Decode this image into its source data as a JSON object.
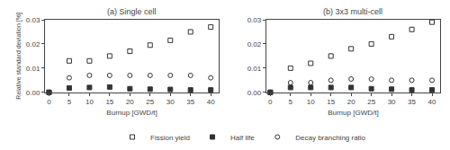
{
  "chart_data": [
    {
      "type": "scatter",
      "title": "(a) Single cell",
      "x": [
        0,
        5,
        10,
        15,
        20,
        25,
        30,
        35,
        40
      ],
      "series": [
        {
          "name": "Fission yield",
          "color": "#333333",
          "marker": "square-open",
          "values": [
            0.0,
            0.013,
            0.013,
            0.015,
            0.017,
            0.0195,
            0.0215,
            0.025,
            0.027
          ]
        },
        {
          "name": "Half life",
          "color": "#333333",
          "marker": "square",
          "values": [
            0.0,
            0.0018,
            0.002,
            0.0022,
            0.0015,
            0.0013,
            0.0012,
            0.001,
            0.001
          ]
        },
        {
          "name": "Decay branching ratio",
          "color": "#333333",
          "marker": "circle-open",
          "values": [
            0.0,
            0.006,
            0.007,
            0.007,
            0.007,
            0.007,
            0.007,
            0.007,
            0.006
          ]
        }
      ],
      "xlabel": "Burnup [GWD/t]",
      "ylabel": "Relative standard deviation [%]",
      "xlim": [
        -1,
        42
      ],
      "ylim": [
        0.0,
        0.03
      ],
      "xticks": [
        0,
        5,
        10,
        15,
        20,
        25,
        30,
        35,
        40
      ],
      "yticks": [
        {
          "value": 0.0,
          "label": "0.00"
        },
        {
          "value": 0.01,
          "label": "0.01"
        },
        {
          "value": 0.02,
          "label": "0.02"
        },
        {
          "value": 0.03,
          "label": "0.03"
        }
      ],
      "grid": false,
      "legend": "bottom"
    },
    {
      "type": "scatter",
      "title": "(b) 3x3 multi-cell",
      "x": [
        0,
        5,
        10,
        15,
        20,
        25,
        30,
        35,
        40
      ],
      "series": [
        {
          "name": "Fission yield",
          "color": "#333333",
          "marker": "square-open",
          "values": [
            0.0,
            0.01,
            0.012,
            0.015,
            0.018,
            0.02,
            0.023,
            0.026,
            0.029
          ]
        },
        {
          "name": "Half life",
          "color": "#333333",
          "marker": "square",
          "values": [
            0.0,
            0.002,
            0.002,
            0.002,
            0.002,
            0.0015,
            0.0013,
            0.001,
            0.001
          ]
        },
        {
          "name": "Decay branching ratio",
          "color": "#333333",
          "marker": "circle-open",
          "values": [
            0.0,
            0.004,
            0.004,
            0.005,
            0.0055,
            0.0055,
            0.005,
            0.005,
            0.005
          ]
        }
      ],
      "xlabel": "Burnup [GWD/t]",
      "xlim": [
        -1,
        42
      ],
      "ylim": [
        0.0,
        0.03
      ],
      "xticks": [
        0,
        5,
        10,
        15,
        20,
        25,
        30,
        35,
        40
      ],
      "yticks": [
        {
          "value": 0.0,
          "label": "0.00"
        },
        {
          "value": 0.01,
          "label": "0.01"
        },
        {
          "value": 0.02,
          "label": "0.02"
        },
        {
          "value": 0.03,
          "label": "0.03"
        }
      ],
      "grid": false,
      "legend": "bottom"
    }
  ]
}
